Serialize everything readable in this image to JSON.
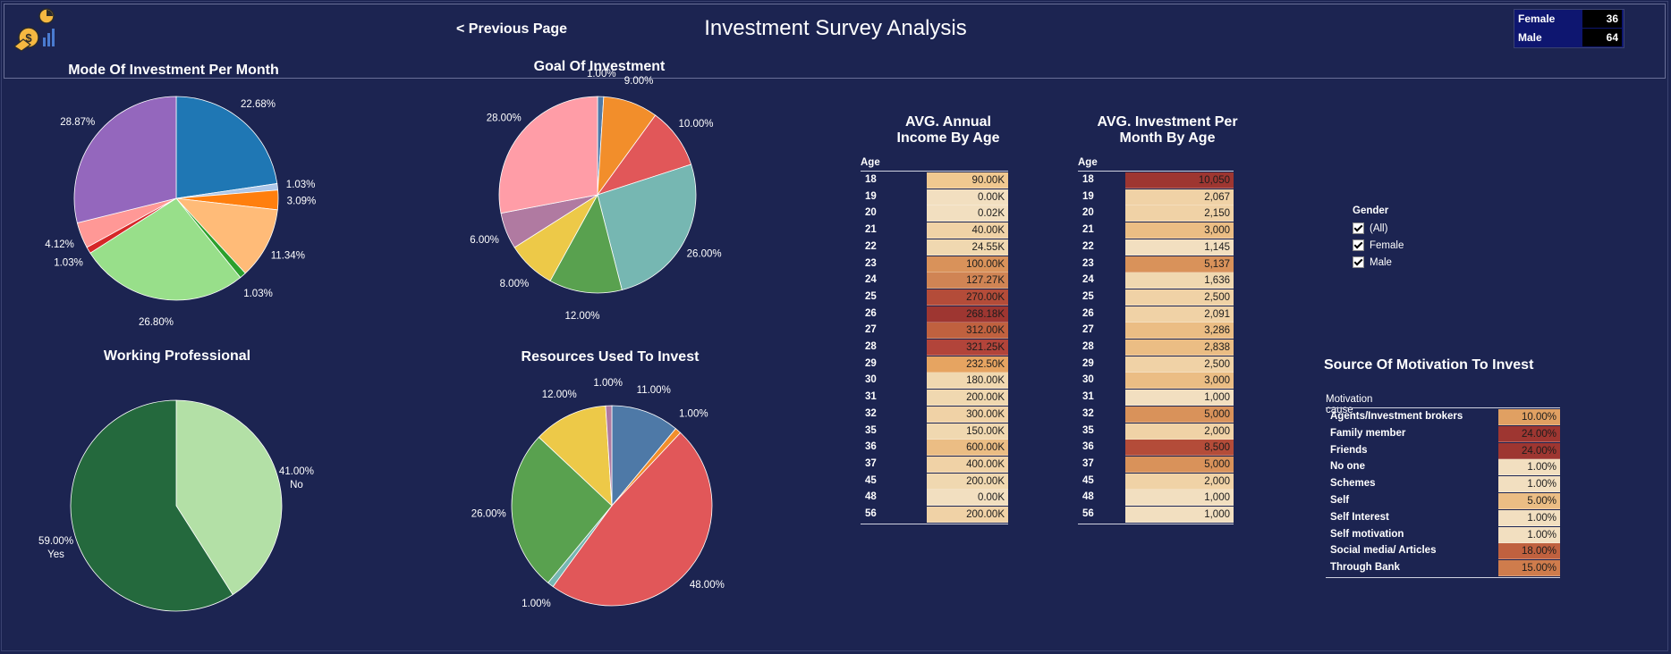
{
  "header": {
    "title": "Investment Survey Analysis",
    "prev_link": "< Previous Page",
    "gender_counts": [
      {
        "label": "Female",
        "value": "36"
      },
      {
        "label": "Male",
        "value": "64"
      }
    ]
  },
  "charts": {
    "mode": {
      "title": "Mode Of Investment Per Month",
      "slices": [
        {
          "value": 22.68,
          "label": "22.68%",
          "color": "#1f77b4"
        },
        {
          "value": 1.03,
          "label": "1.03%",
          "color": "#aec7e8"
        },
        {
          "value": 3.09,
          "label": "3.09%",
          "color": "#ff7f0e"
        },
        {
          "value": 11.34,
          "label": "11.34%",
          "color": "#ffbb78"
        },
        {
          "value": 1.03,
          "label": "1.03%",
          "color": "#2ca02c"
        },
        {
          "value": 26.8,
          "label": "26.80%",
          "color": "#98df8a"
        },
        {
          "value": 1.03,
          "label": "1.03%",
          "color": "#d62728"
        },
        {
          "value": 4.12,
          "label": "4.12%",
          "color": "#ff9896"
        },
        {
          "value": 28.87,
          "label": "28.87%",
          "color": "#9467bd"
        }
      ]
    },
    "goal": {
      "title": "Goal Of Investment",
      "slices": [
        {
          "value": 1.0,
          "label": "1.00%",
          "color": "#4e79a7"
        },
        {
          "value": 9.0,
          "label": "9.00%",
          "color": "#f28e2b"
        },
        {
          "value": 10.0,
          "label": "10.00%",
          "color": "#e15759"
        },
        {
          "value": 26.0,
          "label": "26.00%",
          "color": "#76b7b2"
        },
        {
          "value": 12.0,
          "label": "12.00%",
          "color": "#59a14f"
        },
        {
          "value": 8.0,
          "label": "8.00%",
          "color": "#edc948"
        },
        {
          "value": 6.0,
          "label": "6.00%",
          "color": "#b07aa1"
        },
        {
          "value": 28.0,
          "label": "28.00%",
          "color": "#ff9da7"
        }
      ]
    },
    "working": {
      "title": "Working Professional",
      "slices": [
        {
          "value": 41.0,
          "label": "41.00%",
          "sub": "No",
          "color": "#b3e0a6"
        },
        {
          "value": 59.0,
          "label": "59.00%",
          "sub": "Yes",
          "color": "#24693d"
        }
      ]
    },
    "resources": {
      "title": "Resources Used To Invest",
      "slices": [
        {
          "value": 11.0,
          "label": "11.00%",
          "color": "#4e79a7"
        },
        {
          "value": 1.0,
          "label": "1.00%",
          "color": "#f28e2b"
        },
        {
          "value": 48.0,
          "label": "48.00%",
          "color": "#e15759"
        },
        {
          "value": 1.0,
          "label": "1.00%",
          "color": "#76b7b2"
        },
        {
          "value": 26.0,
          "label": "26.00%",
          "color": "#59a14f"
        },
        {
          "value": 12.0,
          "label": "12.00%",
          "color": "#edc948"
        },
        {
          "value": 1.0,
          "label": "1.00%",
          "color": "#b07aa1"
        }
      ]
    }
  },
  "income_table": {
    "title_line1": "AVG. Annual",
    "title_line2": "Income By Age",
    "header": "Age",
    "rows": [
      {
        "age": "18",
        "value": "90.00K",
        "color": "#f0c890"
      },
      {
        "age": "19",
        "value": "0.00K",
        "color": "#f2dfc0"
      },
      {
        "age": "20",
        "value": "0.02K",
        "color": "#f2dfc0"
      },
      {
        "age": "21",
        "value": "40.00K",
        "color": "#f0d2a6"
      },
      {
        "age": "22",
        "value": "24.55K",
        "color": "#f0d8b0"
      },
      {
        "age": "23",
        "value": "100.00K",
        "color": "#d9925a"
      },
      {
        "age": "24",
        "value": "127.27K",
        "color": "#d08454"
      },
      {
        "age": "25",
        "value": "270.00K",
        "color": "#b44c39"
      },
      {
        "age": "26",
        "value": "268.18K",
        "color": "#9e3631"
      },
      {
        "age": "27",
        "value": "312.00K",
        "color": "#c0613f"
      },
      {
        "age": "28",
        "value": "321.25K",
        "color": "#b2443a"
      },
      {
        "age": "29",
        "value": "232.50K",
        "color": "#e6a461"
      },
      {
        "age": "30",
        "value": "180.00K",
        "color": "#f0d8b0"
      },
      {
        "age": "31",
        "value": "200.00K",
        "color": "#f0d8b0"
      },
      {
        "age": "32",
        "value": "300.00K",
        "color": "#f0d2a6"
      },
      {
        "age": "35",
        "value": "150.00K",
        "color": "#f0d8b0"
      },
      {
        "age": "36",
        "value": "600.00K",
        "color": "#ebbd84"
      },
      {
        "age": "37",
        "value": "400.00K",
        "color": "#f0d2a6"
      },
      {
        "age": "45",
        "value": "200.00K",
        "color": "#f0d8b0"
      },
      {
        "age": "48",
        "value": "0.00K",
        "color": "#f2dfc0"
      },
      {
        "age": "56",
        "value": "200.00K",
        "color": "#f0d2a6"
      }
    ]
  },
  "investment_table": {
    "title_line1": "AVG. Investment Per",
    "title_line2": "Month By Age",
    "header": "Age",
    "rows": [
      {
        "age": "18",
        "value": "10,050",
        "color": "#9e3631"
      },
      {
        "age": "19",
        "value": "2,067",
        "color": "#f0d2a6"
      },
      {
        "age": "20",
        "value": "2,150",
        "color": "#f0d2a6"
      },
      {
        "age": "21",
        "value": "3,000",
        "color": "#ebbd84"
      },
      {
        "age": "22",
        "value": "1,145",
        "color": "#f2dfc0"
      },
      {
        "age": "23",
        "value": "5,137",
        "color": "#d9925a"
      },
      {
        "age": "24",
        "value": "1,636",
        "color": "#f0d8b0"
      },
      {
        "age": "25",
        "value": "2,500",
        "color": "#f0d2a6"
      },
      {
        "age": "26",
        "value": "2,091",
        "color": "#f0d2a6"
      },
      {
        "age": "27",
        "value": "3,286",
        "color": "#ebbd84"
      },
      {
        "age": "28",
        "value": "2,838",
        "color": "#ebbd84"
      },
      {
        "age": "29",
        "value": "2,500",
        "color": "#f0d2a6"
      },
      {
        "age": "30",
        "value": "3,000",
        "color": "#ebbd84"
      },
      {
        "age": "31",
        "value": "1,000",
        "color": "#f2dfc0"
      },
      {
        "age": "32",
        "value": "5,000",
        "color": "#d9925a"
      },
      {
        "age": "35",
        "value": "2,000",
        "color": "#f0d2a6"
      },
      {
        "age": "36",
        "value": "8,500",
        "color": "#b44c39"
      },
      {
        "age": "37",
        "value": "5,000",
        "color": "#d9925a"
      },
      {
        "age": "45",
        "value": "2,000",
        "color": "#f0d2a6"
      },
      {
        "age": "48",
        "value": "1,000",
        "color": "#f2dfc0"
      },
      {
        "age": "56",
        "value": "1,000",
        "color": "#f2dfc0"
      }
    ]
  },
  "gender_filter": {
    "title": "Gender",
    "options": [
      "(All)",
      "Female",
      "Male"
    ]
  },
  "motivation_table": {
    "title": "Source Of Motivation To Invest",
    "header": "Motivation cause",
    "rows": [
      {
        "cause": "Agents/Investment brokers",
        "value": "10.00%",
        "color": "#e0a062"
      },
      {
        "cause": "Family member",
        "value": "24.00%",
        "color": "#9e3631"
      },
      {
        "cause": "Friends",
        "value": "24.00%",
        "color": "#9e3631"
      },
      {
        "cause": "No one",
        "value": "1.00%",
        "color": "#f2dfc0"
      },
      {
        "cause": "Schemes",
        "value": "1.00%",
        "color": "#f2dfc0"
      },
      {
        "cause": "Self",
        "value": "5.00%",
        "color": "#ebbd84"
      },
      {
        "cause": "Self Interest",
        "value": "1.00%",
        "color": "#f2dfc0"
      },
      {
        "cause": "Self motivation",
        "value": "1.00%",
        "color": "#f2dfc0"
      },
      {
        "cause": "Social media/ Articles",
        "value": "18.00%",
        "color": "#c0613f"
      },
      {
        "cause": "Through Bank",
        "value": "15.00%",
        "color": "#cf7c4c"
      }
    ]
  }
}
